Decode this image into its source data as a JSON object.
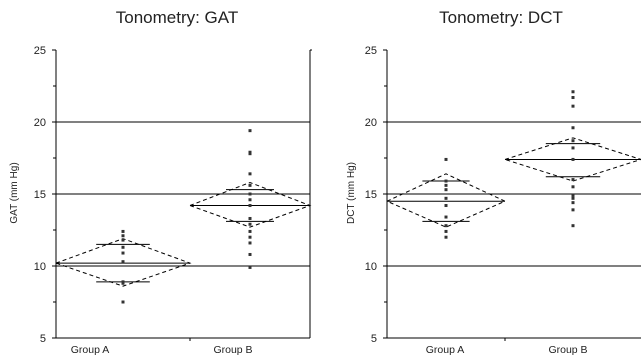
{
  "chart_data": [
    {
      "type": "scatter",
      "title": "Tonometry: GAT",
      "xlabel": "",
      "ylabel": "GAT (mm Hg)",
      "ylim": [
        5,
        25
      ],
      "yticks": [
        5,
        10,
        15,
        20,
        25
      ],
      "categories": [
        "Group A",
        "Group B"
      ],
      "grid": "horizontal",
      "points": [
        [
          12.4,
          12.1,
          11.8,
          11.3,
          10.9,
          10.3,
          8.9,
          8.8,
          7.5
        ],
        [
          19.4,
          17.9,
          17.8,
          16.4,
          15.6,
          15.0,
          14.6,
          14.2,
          13.3,
          12.9,
          12.4,
          12.0,
          11.6,
          10.8,
          9.9
        ]
      ],
      "groups": [
        {
          "mean": 10.2,
          "ci": [
            8.6,
            11.9
          ],
          "mean_inner": [
            8.9,
            11.5
          ]
        },
        {
          "mean": 14.2,
          "ci": [
            12.7,
            15.8
          ],
          "mean_inner": [
            13.1,
            15.3
          ]
        }
      ]
    },
    {
      "type": "scatter",
      "title": "Tonometry: DCT",
      "xlabel": "",
      "ylabel": "DCT (mm Hg)",
      "ylim": [
        5,
        25
      ],
      "yticks": [
        5,
        10,
        15,
        20,
        25
      ],
      "categories": [
        "Group A",
        "Group B"
      ],
      "grid": "horizontal",
      "points": [
        [
          17.4,
          15.9,
          15.6,
          15.3,
          14.7,
          14.2,
          13.4,
          12.8,
          12.4,
          12.0
        ],
        [
          22.1,
          21.7,
          21.1,
          19.6,
          18.7,
          18.2,
          17.4,
          16.0,
          15.5,
          14.9,
          14.7,
          14.4,
          13.9,
          12.8
        ]
      ],
      "groups": [
        {
          "mean": 14.5,
          "ci": [
            12.7,
            16.4
          ],
          "mean_inner": [
            13.1,
            15.9
          ]
        },
        {
          "mean": 17.4,
          "ci": [
            15.9,
            18.9
          ],
          "mean_inner": [
            16.2,
            18.5
          ]
        }
      ]
    }
  ]
}
